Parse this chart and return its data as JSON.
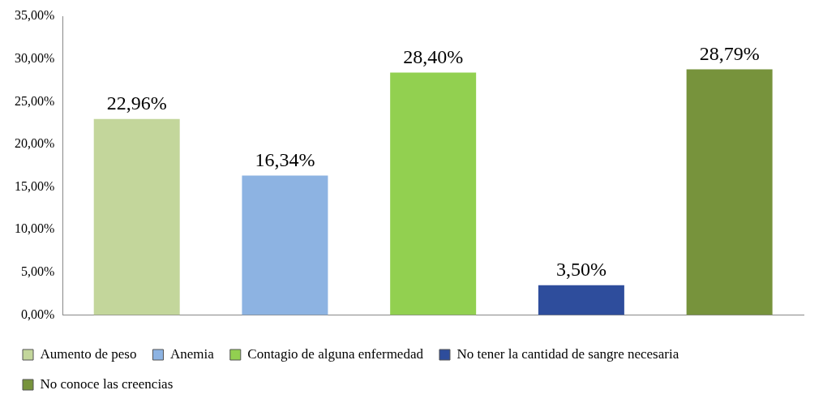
{
  "chart_data": {
    "type": "bar",
    "categories": [
      null
    ],
    "series": [
      {
        "name": "Aumento de peso",
        "color": "#c3d69b",
        "values": [
          22.96
        ],
        "value_labels": [
          "22,96%"
        ]
      },
      {
        "name": "Anemia",
        "color": "#8db3e2",
        "values": [
          16.34
        ],
        "value_labels": [
          "16,34%"
        ]
      },
      {
        "name": "Contagio de alguna enfermedad",
        "color": "#92d050",
        "values": [
          28.4
        ],
        "value_labels": [
          "28,40%"
        ]
      },
      {
        "name": "No tener la cantidad de sangre necesaria",
        "color": "#2e4d9c",
        "values": [
          3.5
        ],
        "value_labels": [
          "3,50%"
        ]
      },
      {
        "name": "No conoce las creencias",
        "color": "#77933c",
        "values": [
          28.79
        ],
        "value_labels": [
          "28,79%"
        ]
      }
    ],
    "ylim": [
      0,
      35
    ],
    "yticks": [
      {
        "value": 0,
        "label": "0,00%"
      },
      {
        "value": 5,
        "label": "5,00%"
      },
      {
        "value": 10,
        "label": "10,00%"
      },
      {
        "value": 15,
        "label": "15,00%"
      },
      {
        "value": 20,
        "label": "20,00%"
      },
      {
        "value": 25,
        "label": "25,00%"
      },
      {
        "value": 30,
        "label": "30,00%"
      },
      {
        "value": 35,
        "label": "35,00%"
      }
    ],
    "grid": false,
    "legend": "bottom"
  }
}
